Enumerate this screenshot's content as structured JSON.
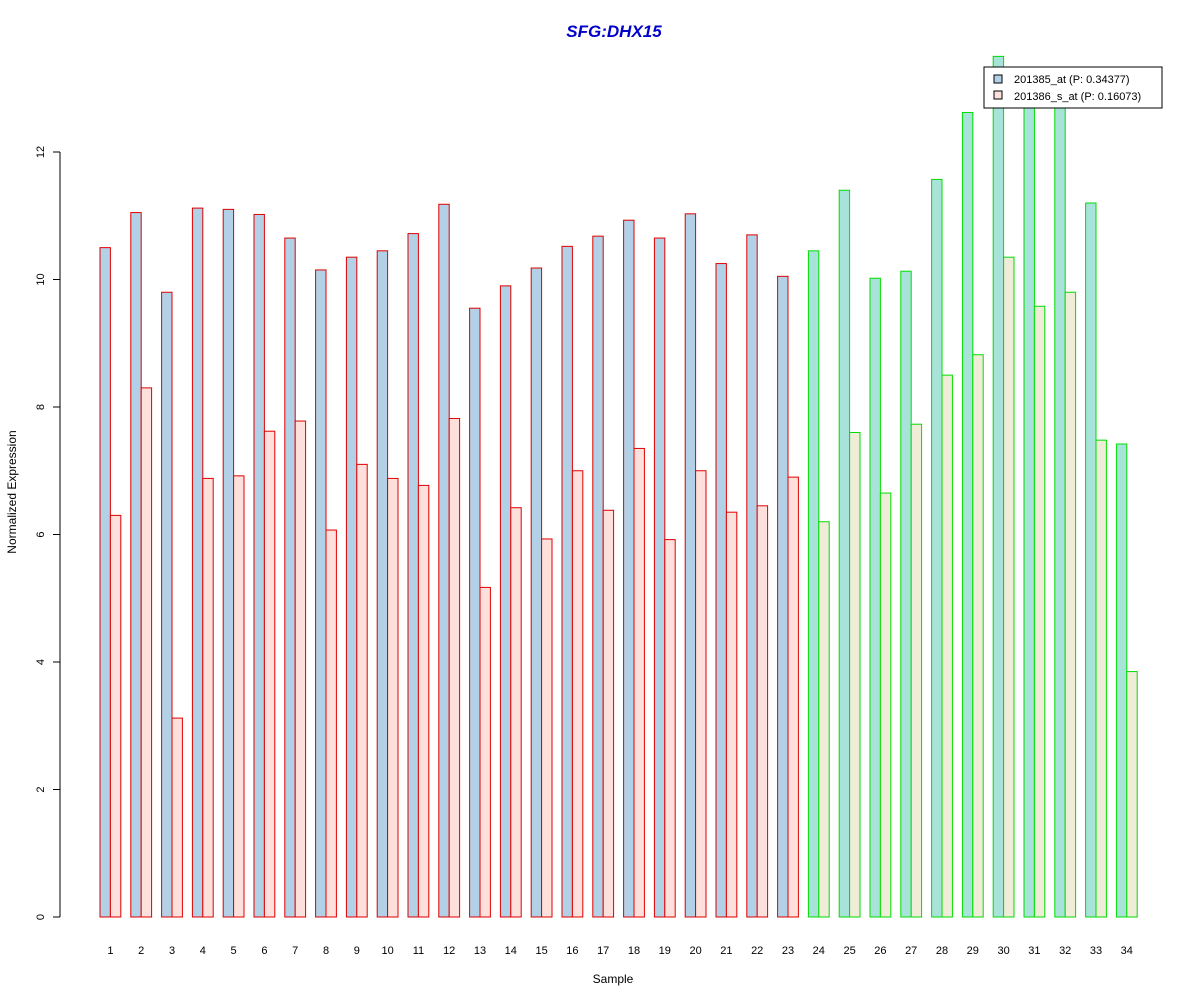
{
  "chart_data": {
    "type": "bar",
    "title": "SFG:DHX15",
    "xlabel": "Sample",
    "ylabel": "Normalized Expression",
    "ylim": [
      0,
      13.5
    ],
    "yticks": [
      0,
      2,
      4,
      6,
      8,
      10,
      12
    ],
    "grid": false,
    "legend_position": "top-right",
    "categories": [
      "1",
      "2",
      "3",
      "4",
      "5",
      "6",
      "7",
      "8",
      "9",
      "10",
      "11",
      "12",
      "13",
      "14",
      "15",
      "16",
      "17",
      "18",
      "19",
      "20",
      "21",
      "22",
      "23",
      "24",
      "25",
      "26",
      "27",
      "28",
      "29",
      "30",
      "31",
      "32",
      "33",
      "34"
    ],
    "series": [
      {
        "name": "201385_at (P: 0.34377)",
        "values": [
          10.5,
          11.05,
          9.8,
          11.12,
          11.1,
          11.02,
          10.65,
          10.15,
          10.35,
          10.45,
          10.72,
          11.18,
          9.55,
          9.9,
          10.18,
          10.52,
          10.68,
          10.93,
          10.65,
          11.03,
          10.25,
          10.7,
          10.05,
          10.45,
          11.4,
          10.02,
          10.13,
          11.57,
          12.62,
          13.5,
          12.9,
          12.8,
          11.2,
          7.42
        ]
      },
      {
        "name": "201386_s_at (P: 0.16073)",
        "values": [
          6.3,
          8.3,
          3.12,
          6.88,
          6.92,
          7.62,
          7.78,
          6.07,
          7.1,
          6.88,
          6.77,
          7.82,
          5.17,
          6.42,
          5.93,
          7.0,
          6.38,
          7.35,
          5.92,
          7.0,
          6.35,
          6.45,
          6.9,
          6.2,
          7.6,
          6.65,
          7.73,
          8.5,
          8.82,
          10.35,
          9.58,
          9.8,
          7.48,
          3.85
        ]
      }
    ],
    "groups": [
      {
        "from": 1,
        "to": 23,
        "outline_color": "#e00000"
      },
      {
        "from": 24,
        "to": 34,
        "outline_color": "#00dd00"
      }
    ],
    "colors": {
      "title": "#0000cc",
      "group1_series1_fill": "#b3d1e6",
      "group1_series2_fill": "#fde0dc",
      "group2_series1_fill": "#a7e3d9",
      "group2_series2_fill": "#efecd8",
      "legend_series1_fill": "#b3d1e6",
      "legend_series2_fill": "#fde0dc",
      "axis": "#000000"
    }
  }
}
